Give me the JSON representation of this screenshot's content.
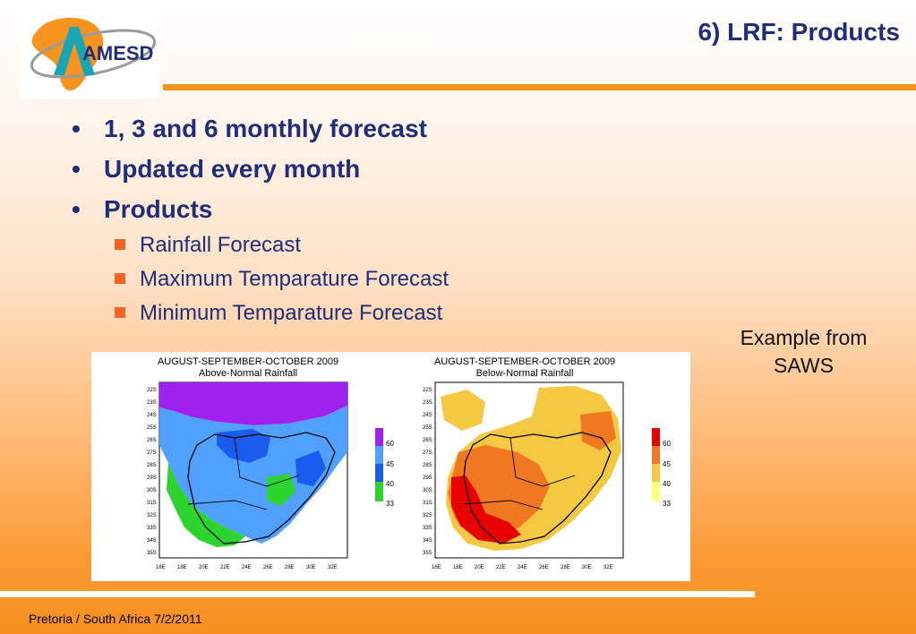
{
  "header": {
    "title": "6) LRF: Products",
    "logo_text": "AMESD"
  },
  "bullets": [
    {
      "label": "1, 3 and 6 monthly forecast"
    },
    {
      "label": "Updated every month"
    },
    {
      "label": "Products"
    }
  ],
  "sub_bullets": [
    {
      "label": "Rainfall Forecast"
    },
    {
      "label": "Maximum Temparature Forecast"
    },
    {
      "label": "Minimum Temparature Forecast"
    }
  ],
  "caption": {
    "line1": "Example from",
    "line2": "SAWS"
  },
  "maps": [
    {
      "title": "AUGUST-SEPTEMBER-OCTOBER 2009",
      "subtitle": "Above-Normal Rainfall",
      "legend": [
        "60",
        "45",
        "40",
        "33"
      ],
      "colors": [
        "#a020f0",
        "#4fa0ff",
        "#1b5cf0",
        "#2dd42d"
      ]
    },
    {
      "title": "AUGUST-SEPTEMBER-OCTOBER 2009",
      "subtitle": "Below-Normal Rainfall",
      "legend": [
        "60",
        "45",
        "40",
        "33"
      ],
      "colors": [
        "#e80000",
        "#f07820",
        "#f5c842",
        "#ffff80"
      ]
    }
  ],
  "y_ticks": [
    "22S",
    "23S",
    "24S",
    "25S",
    "26S",
    "27S",
    "28S",
    "29S",
    "30S",
    "31S",
    "32S",
    "33S",
    "34S",
    "35S"
  ],
  "x_ticks": [
    "16E",
    "18E",
    "20E",
    "22E",
    "24E",
    "26E",
    "28E",
    "30E",
    "32E"
  ],
  "footer": {
    "text": "Pretoria / South Africa 7/2/2011"
  },
  "theme": {
    "title_color": "#1f2d7a",
    "accent_orange": "#f7941d",
    "bullet_square": "#f26522"
  }
}
